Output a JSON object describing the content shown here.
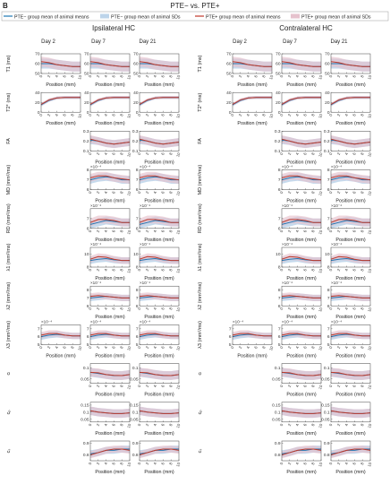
{
  "panel_label": "B",
  "title": "PTE− vs. PTE+",
  "legend": [
    {
      "kind": "line",
      "color": "#1f77b4",
      "label": "PTE− group mean of animal means"
    },
    {
      "kind": "band",
      "color": "#bcd4ea",
      "label": "PTE− group mean of animal SDs"
    },
    {
      "kind": "line",
      "color": "#c0392b",
      "label": "PTE+ group mean of animal means"
    },
    {
      "kind": "band",
      "color": "#e6c2cd",
      "label": "PTE+ group mean of animal SDs"
    }
  ],
  "hemispheres": [
    "Ipsilateral HC",
    "Contralateral HC"
  ],
  "days": [
    "Day 2",
    "Day 7",
    "Day 21"
  ],
  "xlabel": "Position (mm)",
  "x_ticks": [
    "0",
    "2",
    "4",
    "6",
    "8",
    "10"
  ],
  "colors": {
    "pte_minus": "#1f77b4",
    "pte_minus_band": "#bcd4ea",
    "pte_plus": "#c0392b",
    "pte_plus_band": "#e6c2cd",
    "overlap_band": "#c9c3d6"
  },
  "chart_data": {
    "type": "line",
    "x": [
      0,
      2,
      4,
      6,
      8,
      10
    ],
    "rows": [
      {
        "label": "T1 (ms)",
        "days_present": [
          0,
          1,
          2
        ],
        "ylim": [
          50,
          70
        ],
        "yticks": [
          "70",
          "60",
          "50"
        ],
        "exponent": "",
        "band": 5,
        "minus": [
          60,
          60,
          59,
          58,
          57,
          57
        ],
        "plus": [
          62,
          61,
          59,
          58,
          57,
          57
        ]
      },
      {
        "label": "T2* (ms)",
        "days_present": [
          0,
          1,
          2
        ],
        "ylim": [
          0,
          40
        ],
        "yticks": [
          "40",
          "20",
          "0"
        ],
        "exponent": "",
        "band": 3,
        "minus": [
          15,
          24,
          29,
          30,
          30,
          30
        ],
        "plus": [
          16,
          25,
          29,
          30,
          30,
          30
        ]
      },
      {
        "label": "FA",
        "days_present": [
          1,
          2
        ],
        "ylim": [
          0.1,
          0.3
        ],
        "yticks": [
          "0.3",
          "0.2",
          "0.1"
        ],
        "exponent": "",
        "band": 0.04,
        "minus": [
          0.21,
          0.2,
          0.18,
          0.17,
          0.18,
          0.19
        ],
        "plus": [
          0.22,
          0.2,
          0.18,
          0.17,
          0.18,
          0.19
        ]
      },
      {
        "label": "MD (mm²/ms)",
        "days_present": [
          1,
          2
        ],
        "ylim": [
          6,
          8
        ],
        "yticks": [
          "8",
          "7",
          "6"
        ],
        "exponent": "×10⁻⁴",
        "band": 0.4,
        "minus": [
          7.0,
          7.2,
          7.3,
          7.2,
          7.0,
          7.0
        ],
        "plus": [
          7.2,
          7.4,
          7.4,
          7.2,
          7.1,
          7.0
        ]
      },
      {
        "label": "RD (mm²/ms)",
        "days_present": [
          1,
          2
        ],
        "ylim": [
          6,
          8
        ],
        "yticks": [
          "7",
          "6"
        ],
        "exponent": "×10⁻⁴",
        "band": 0.4,
        "minus": [
          6.4,
          6.6,
          6.8,
          6.7,
          6.6,
          6.6
        ],
        "plus": [
          6.6,
          6.9,
          6.9,
          6.8,
          6.6,
          6.6
        ]
      },
      {
        "label": "λ1 (mm²/ms)",
        "days_present": [
          1,
          2
        ],
        "ylim": [
          8,
          11
        ],
        "yticks": [
          "10",
          "8"
        ],
        "exponent": "×10⁻⁴",
        "band": 0.5,
        "minus": [
          9.0,
          9.2,
          9.3,
          9.1,
          9.0,
          9.0
        ],
        "plus": [
          9.2,
          9.6,
          9.5,
          9.2,
          9.0,
          9.0
        ]
      },
      {
        "label": "λ2 (mm²/ms)",
        "days_present": [
          1,
          2
        ],
        "ylim": [
          6,
          8.5
        ],
        "yticks": [
          "8",
          "7",
          "6"
        ],
        "exponent": "×10⁻⁴",
        "band": 0.4,
        "minus": [
          7.0,
          7.1,
          7.2,
          7.1,
          7.0,
          7.0
        ],
        "plus": [
          7.2,
          7.3,
          7.2,
          7.1,
          7.0,
          7.0
        ]
      },
      {
        "label": "λ3 (mm²/ms)",
        "days_present": [
          0,
          1,
          2
        ],
        "ylim": [
          5,
          7.5
        ],
        "yticks": [
          "7",
          "6",
          "5"
        ],
        "exponent": "×10⁻⁴",
        "band": 0.4,
        "minus": [
          6.0,
          6.2,
          6.3,
          6.2,
          6.1,
          6.1
        ],
        "plus": [
          6.2,
          6.4,
          6.4,
          6.2,
          6.1,
          6.1
        ]
      },
      {
        "label": "cₗ",
        "days_present": [
          1,
          2
        ],
        "ylim": [
          0.03,
          0.12
        ],
        "yticks": [
          "0.1",
          "0.05"
        ],
        "exponent": "",
        "band": 0.02,
        "minus": [
          0.08,
          0.075,
          0.07,
          0.065,
          0.065,
          0.07
        ],
        "plus": [
          0.08,
          0.078,
          0.07,
          0.066,
          0.065,
          0.07
        ]
      },
      {
        "label": "cₚ",
        "days_present": [
          1,
          2
        ],
        "ylim": [
          0.03,
          0.17
        ],
        "yticks": [
          "0.15",
          "0.1",
          "0.05"
        ],
        "exponent": "",
        "band": 0.03,
        "minus": [
          0.11,
          0.1,
          0.095,
          0.09,
          0.09,
          0.095
        ],
        "plus": [
          0.11,
          0.1,
          0.095,
          0.09,
          0.09,
          0.095
        ]
      },
      {
        "label": "cₛ",
        "days_present": [
          1,
          2
        ],
        "ylim": [
          0.75,
          0.92
        ],
        "yticks": [
          "0.9",
          "0.8"
        ],
        "exponent": "",
        "band": 0.03,
        "minus": [
          0.81,
          0.82,
          0.84,
          0.84,
          0.85,
          0.85
        ],
        "plus": [
          0.8,
          0.82,
          0.84,
          0.85,
          0.85,
          0.84
        ]
      }
    ]
  }
}
